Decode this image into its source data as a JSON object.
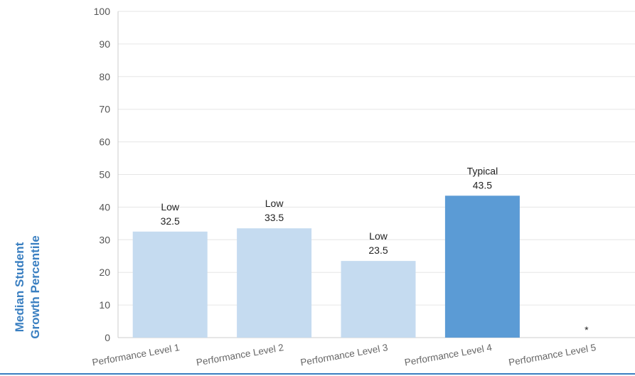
{
  "chart_data": {
    "type": "bar",
    "title": "",
    "xlabel": "",
    "ylabel": "Median Student Growth Percentile",
    "ylabel_lines": [
      "Median Student",
      "Growth Percentile"
    ],
    "ylim": [
      0,
      100
    ],
    "yticks": [
      0,
      10,
      20,
      30,
      40,
      50,
      60,
      70,
      80,
      90,
      100
    ],
    "grid": true,
    "legend": "none",
    "categories": [
      "Performance Level 1",
      "Performance Level 2",
      "Performance Level 3",
      "Performance Level 4",
      "Performance Level 5"
    ],
    "values": [
      32.5,
      33.5,
      23.5,
      43.5,
      null
    ],
    "value_labels": [
      "32.5",
      "33.5",
      "23.5",
      "43.5",
      "*"
    ],
    "growth_labels": [
      "Low",
      "Low",
      "Low",
      "Typical",
      ""
    ],
    "bar_colors": [
      "#c5dbf0",
      "#c5dbf0",
      "#c5dbf0",
      "#5b9bd5",
      "#c5dbf0"
    ],
    "gridline_color": "#e6e6e6",
    "axis_color": "#cccccc",
    "bottom_rule_color": "#3a7fc1"
  }
}
